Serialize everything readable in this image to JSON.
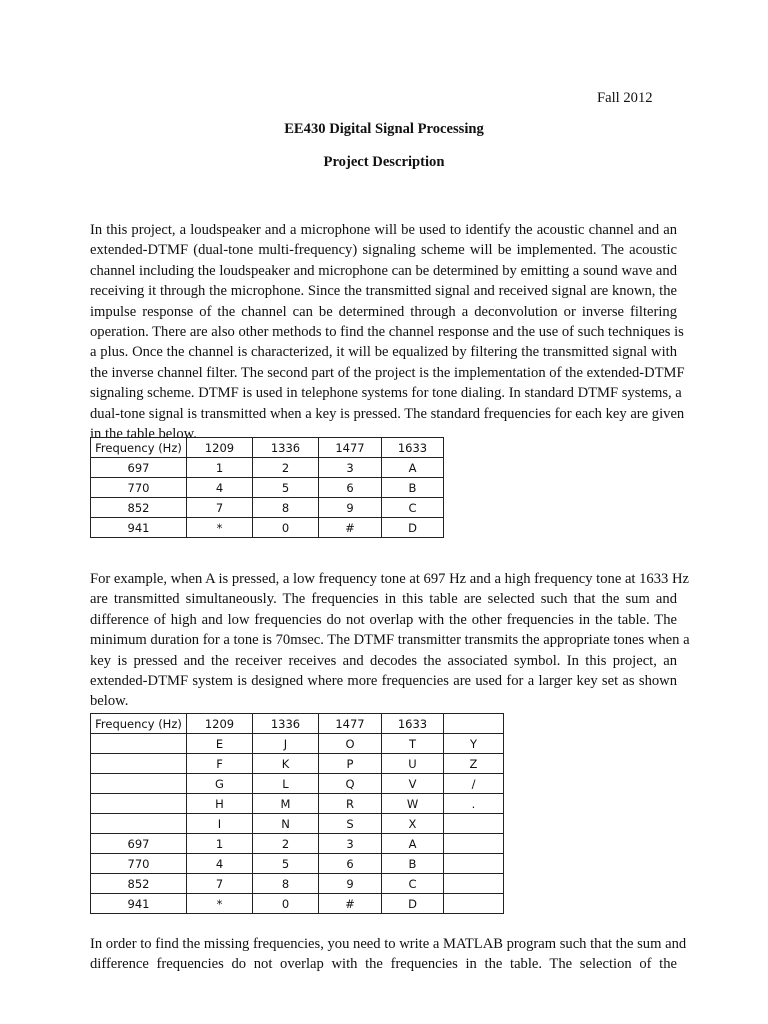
{
  "date": "Fall 2012",
  "course_title": "EE430 Digital Signal Processing",
  "doc_title": "Project Description",
  "paragraph1": [
    "In this project, a loudspeaker and a microphone will be used to identify the acoustic channel and an",
    "extended-DTMF (dual-tone multi-frequency) signaling scheme will be implemented. The acoustic",
    "channel including the loudspeaker and microphone can be determined by emitting a sound wave and",
    "receiving it through the microphone. Since the transmitted signal and received signal are known, the",
    "impulse response of the channel can be determined through a deconvolution or inverse filtering",
    "operation. There are also other methods to find the channel response and the use of such techniques is",
    "a plus. Once the channel is characterized, it will be equalized by filtering the transmitted signal with",
    "the inverse channel filter. The second part of the project is the implementation of the extended-DTMF",
    "signaling scheme. DTMF is used in telephone systems for tone dialing. In standard DTMF systems, a",
    "dual-tone signal is transmitted when a key is pressed. The standard frequencies for each key are given",
    "in the table below."
  ],
  "table1": [
    [
      "Frequency (Hz)",
      "1209",
      "1336",
      "1477",
      "1633"
    ],
    [
      "697",
      "1",
      "2",
      "3",
      "A"
    ],
    [
      "770",
      "4",
      "5",
      "6",
      "B"
    ],
    [
      "852",
      "7",
      "8",
      "9",
      "C"
    ],
    [
      "941",
      "*",
      "0",
      "#",
      "D"
    ]
  ],
  "paragraph2": [
    "For example, when A is pressed, a low frequency tone at 697 Hz and a high frequency tone at 1633 Hz",
    "are transmitted simultaneously. The frequencies in this table are selected such that the sum and",
    "difference of high and low frequencies do not overlap with the other frequencies in the table. The",
    "minimum duration for a tone is 70msec. The DTMF transmitter transmits the appropriate tones when a",
    "key is pressed and the receiver receives and decodes the associated symbol. In this project, an",
    "extended-DTMF system is designed where more frequencies are used for a larger key set as shown",
    "below."
  ],
  "table2": [
    [
      "Frequency (Hz)",
      "1209",
      "1336",
      "1477",
      "1633",
      ""
    ],
    [
      "",
      "E",
      "J",
      "O",
      "T",
      "Y"
    ],
    [
      "",
      "F",
      "K",
      "P",
      "U",
      "Z"
    ],
    [
      "",
      "G",
      "L",
      "Q",
      "V",
      "/"
    ],
    [
      "",
      "H",
      "M",
      "R",
      "W",
      "."
    ],
    [
      "",
      "I",
      "N",
      "S",
      "X",
      ""
    ],
    [
      "697",
      "1",
      "2",
      "3",
      "A",
      ""
    ],
    [
      "770",
      "4",
      "5",
      "6",
      "B",
      ""
    ],
    [
      "852",
      "7",
      "8",
      "9",
      "C",
      ""
    ],
    [
      "941",
      "*",
      "0",
      "#",
      "D",
      ""
    ]
  ],
  "paragraph3": [
    "In order to find the missing frequencies, you need to write a MATLAB program such that the sum and",
    "difference frequencies do not overlap with the frequencies in the table. The selection of the"
  ]
}
